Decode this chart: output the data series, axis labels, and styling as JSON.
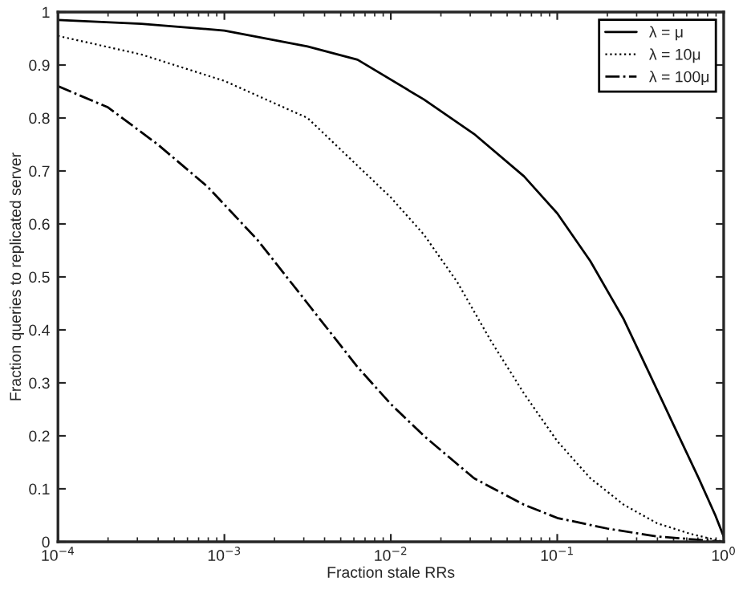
{
  "chart_data": {
    "type": "line",
    "xlabel": "Fraction stale RRs",
    "ylabel": "Fraction queries to replicated server",
    "log": "x",
    "xlim": [
      0.0001,
      1
    ],
    "ylim": [
      0,
      1
    ],
    "xticks": [
      {
        "value": 0.0001,
        "label": "10$^{−4}$"
      },
      {
        "value": 0.001,
        "label": "10$^{−3}$"
      },
      {
        "value": 0.01,
        "label": "10$^{−2}$"
      },
      {
        "value": 0.1,
        "label": "10$^{−1}$"
      },
      {
        "value": 1,
        "label": "10$^{0}$"
      }
    ],
    "yticks": [
      0,
      0.1,
      0.2,
      0.3,
      0.4,
      0.5,
      0.6,
      0.7,
      0.8,
      0.9,
      1
    ],
    "grid": false,
    "legend": "top right",
    "series": [
      {
        "name": "λ = μ",
        "color": "#000000",
        "line_style": "solid",
        "x": [
          0.0001,
          0.000316,
          0.001,
          0.00316,
          0.00631,
          0.0158,
          0.0316,
          0.0631,
          0.1,
          0.158,
          0.251,
          0.355,
          0.501,
          0.708,
          0.891,
          1
        ],
        "values": [
          0.985,
          0.978,
          0.965,
          0.935,
          0.91,
          0.835,
          0.77,
          0.69,
          0.62,
          0.53,
          0.42,
          0.32,
          0.22,
          0.12,
          0.05,
          0.01
        ]
      },
      {
        "name": "λ = 10μ",
        "color": "#000000",
        "line_style": "dotted",
        "x": [
          0.0001,
          0.000316,
          0.001,
          0.00316,
          0.01,
          0.0158,
          0.0251,
          0.0398,
          0.0631,
          0.1,
          0.158,
          0.251,
          0.398,
          0.631,
          1
        ],
        "values": [
          0.955,
          0.92,
          0.87,
          0.8,
          0.65,
          0.58,
          0.49,
          0.38,
          0.28,
          0.19,
          0.12,
          0.07,
          0.035,
          0.015,
          0
        ]
      },
      {
        "name": "λ = 100μ",
        "color": "#000000",
        "line_style": "dashdot",
        "x": [
          0.0001,
          0.0002,
          0.000398,
          0.000794,
          0.00158,
          0.00316,
          0.00631,
          0.01,
          0.0158,
          0.0316,
          0.0631,
          0.1,
          0.2,
          0.398,
          1
        ],
        "values": [
          0.86,
          0.82,
          0.75,
          0.67,
          0.57,
          0.45,
          0.33,
          0.26,
          0.2,
          0.12,
          0.07,
          0.045,
          0.025,
          0.01,
          0
        ]
      }
    ]
  }
}
